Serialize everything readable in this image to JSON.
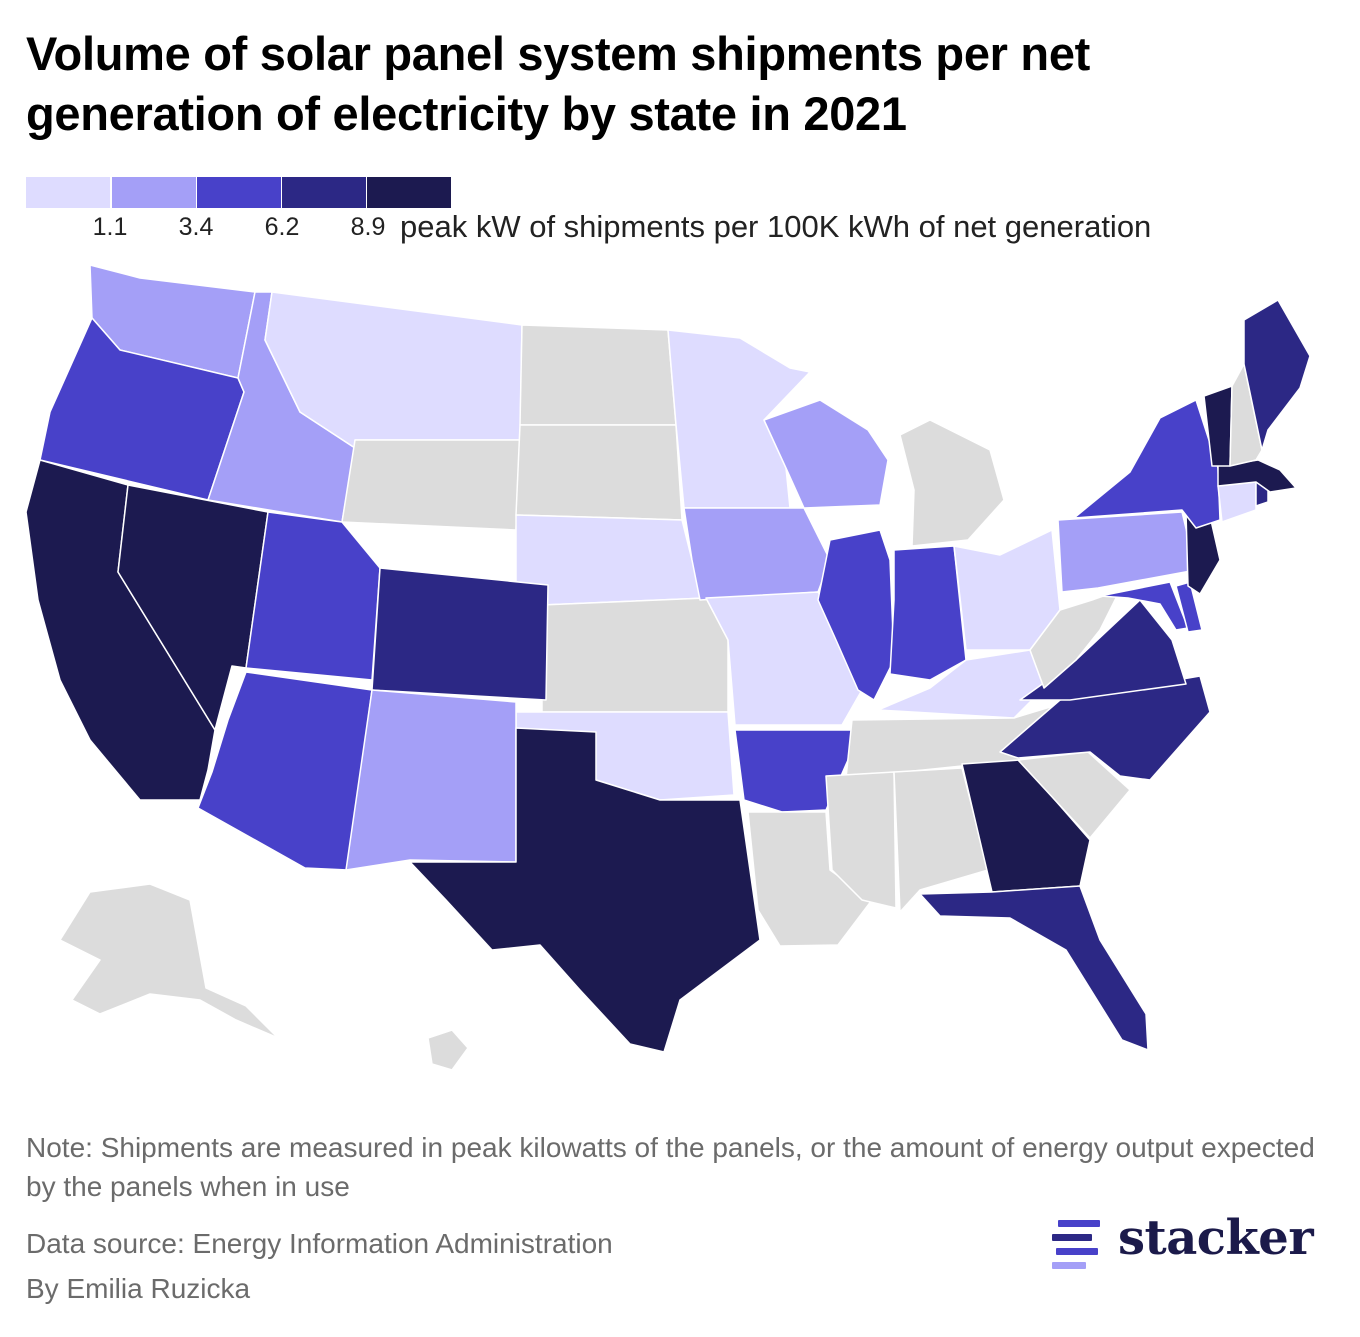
{
  "title": "Volume of solar panel system shipments per net generation of electricity by state in 2021",
  "legend": {
    "colors": [
      "#dedcff",
      "#a49ff7",
      "#4841c9",
      "#2c2885",
      "#1c1a50"
    ],
    "ticks": [
      "1.1",
      "3.4",
      "6.2",
      "8.9"
    ],
    "unit": "peak kW of shipments per 100K kWh of net generation",
    "no_data_color": "#dcdcdc"
  },
  "map_data": {
    "type": "choropleth",
    "region": "United States",
    "thresholds": [
      1.1,
      3.4,
      6.2,
      8.9
    ],
    "bins": {
      "below_1.1": [
        "MT",
        "MN",
        "NE",
        "MO",
        "OK",
        "KY",
        "OH",
        "CT"
      ],
      "1.1_to_3.4": [
        "WA",
        "ID",
        "IA",
        "WI",
        "NM",
        "PA"
      ],
      "3.4_to_6.2": [
        "OR",
        "UT",
        "AZ",
        "IL",
        "IN",
        "AR",
        "NY",
        "MD",
        "DE"
      ],
      "6.2_to_8.9": [
        "CO",
        "VA",
        "NC",
        "FL",
        "ME",
        "RI"
      ],
      "above_8.9": [
        "CA",
        "NV",
        "TX",
        "GA",
        "VT",
        "NJ",
        "MA"
      ],
      "no_data": [
        "ND",
        "SD",
        "WY",
        "KS",
        "LA",
        "MS",
        "AL",
        "TN",
        "SC",
        "WV",
        "MI",
        "NH",
        "AK",
        "HI"
      ]
    }
  },
  "note": "Note: Shipments are measured in peak kilowatts of the panels, or the amount of energy output expected by the panels when in use",
  "source": "Data source: Energy Information Administration",
  "byline": "By Emilia Ruzicka",
  "brand": {
    "name": "stacker",
    "mark_colors": [
      "#4841c9",
      "#2c2885",
      "#a49ff7"
    ]
  }
}
